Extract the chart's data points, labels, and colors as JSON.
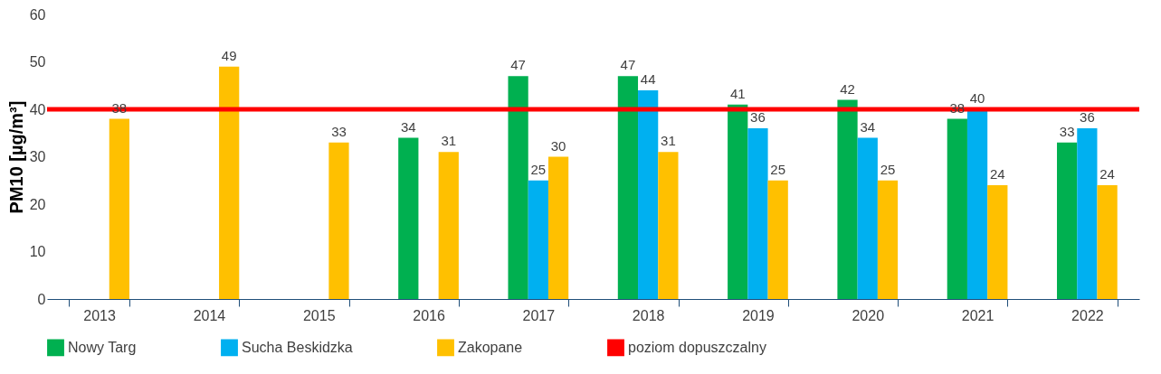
{
  "chart_data": {
    "type": "bar",
    "ylabel": "PM10 [µg/m³]",
    "categories": [
      "2013",
      "2014",
      "2015",
      "2016",
      "2017",
      "2018",
      "2019",
      "2020",
      "2021",
      "2022"
    ],
    "series": [
      {
        "name": "Nowy Targ",
        "color": "#00b050",
        "values": [
          null,
          null,
          null,
          34,
          47,
          47,
          41,
          42,
          38,
          33
        ]
      },
      {
        "name": "Sucha Beskidzka",
        "color": "#00b0f0",
        "values": [
          null,
          null,
          null,
          null,
          25,
          44,
          36,
          34,
          40,
          36
        ]
      },
      {
        "name": "Zakopane",
        "color": "#ffc000",
        "values": [
          38,
          49,
          33,
          31,
          30,
          31,
          25,
          25,
          24,
          24
        ]
      }
    ],
    "ref_lines": [
      {
        "axis": "y",
        "value": 40,
        "label": "poziom dopuszczalny",
        "color": "#ff0000"
      }
    ],
    "ylim": [
      0,
      60
    ],
    "yticks": [
      0,
      10,
      20,
      30,
      40,
      50,
      60
    ],
    "data_labels": true,
    "grid": false,
    "legend": "bottom"
  }
}
